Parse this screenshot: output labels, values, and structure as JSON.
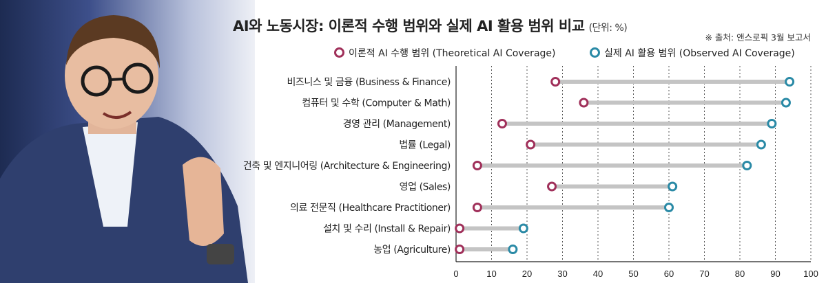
{
  "header": {
    "title": "AI와 노동시장: 이론적 수행 범위와 실제 AI 활용 범위 비교",
    "unit": "(단위: %)",
    "source": "※ 출처: 앤스로픽 3월 보고서"
  },
  "colors": {
    "theoretical": "#a0305a",
    "observed": "#2a8aa6",
    "bar": "#c4c4c4",
    "grid": "#555555"
  },
  "chart_data": {
    "type": "dumbbell",
    "title": "AI와 노동시장: 이론적 수행 범위와 실제 AI 활용 범위 비교",
    "unit": "(단위: %)",
    "categories": [
      "비즈니스 및 금융 (Business & Finance)",
      "컴퓨터 및 수학 (Computer & Math)",
      "경영 관리 (Management)",
      "법률 (Legal)",
      "건축 및 엔지니어링 (Architecture & Engineering)",
      "영업 (Sales)",
      "의료 전문직 (Healthcare Practitioner)",
      "설치 및 수리 (Install & Repair)",
      "농업 (Agriculture)"
    ],
    "series": [
      {
        "name": "이론적 AI 수행 범위 (Theoretical AI Coverage)",
        "values": [
          28,
          36,
          13,
          21,
          6,
          27,
          6,
          1,
          1
        ]
      },
      {
        "name": "실제 AI 활용 범위 (Observed AI Coverage)",
        "values": [
          94,
          93,
          89,
          86,
          82,
          61,
          60,
          19,
          16
        ]
      }
    ],
    "xlim": [
      0,
      100
    ],
    "xticks": [
      "0",
      "10",
      "20",
      "30",
      "40",
      "50",
      "60",
      "70",
      "80",
      "90",
      "100"
    ],
    "grid": "vertical dotted",
    "legend": "top"
  }
}
